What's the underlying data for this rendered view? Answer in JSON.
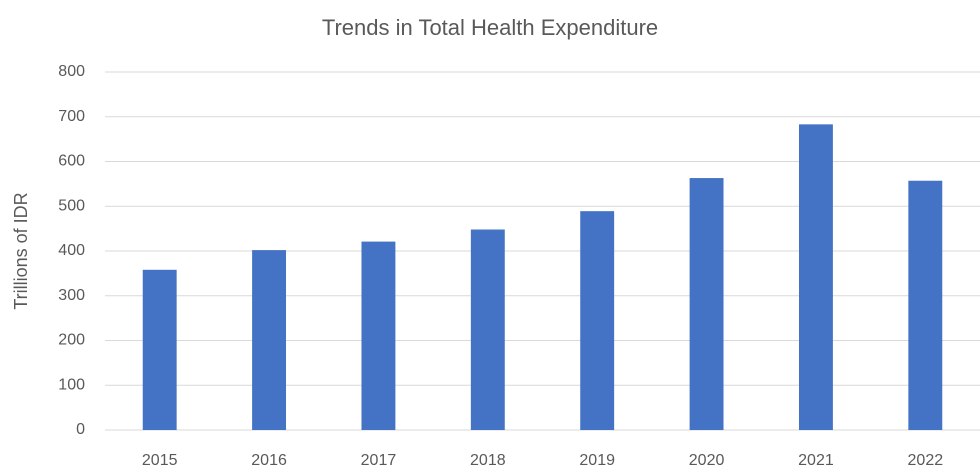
{
  "chart_data": {
    "type": "bar",
    "title": "Trends in Total Health Expenditure",
    "y_label": "Trillions of IDR",
    "categories": [
      "2015",
      "2016",
      "2017",
      "2018",
      "2019",
      "2020",
      "2021",
      "2022"
    ],
    "values": [
      358,
      402,
      421,
      448,
      489,
      563,
      683,
      557
    ],
    "color": "#4472c4",
    "ylim": [
      0,
      800
    ],
    "yticks": [
      0,
      100,
      200,
      300,
      400,
      500,
      600,
      700,
      800
    ],
    "grid": true
  }
}
